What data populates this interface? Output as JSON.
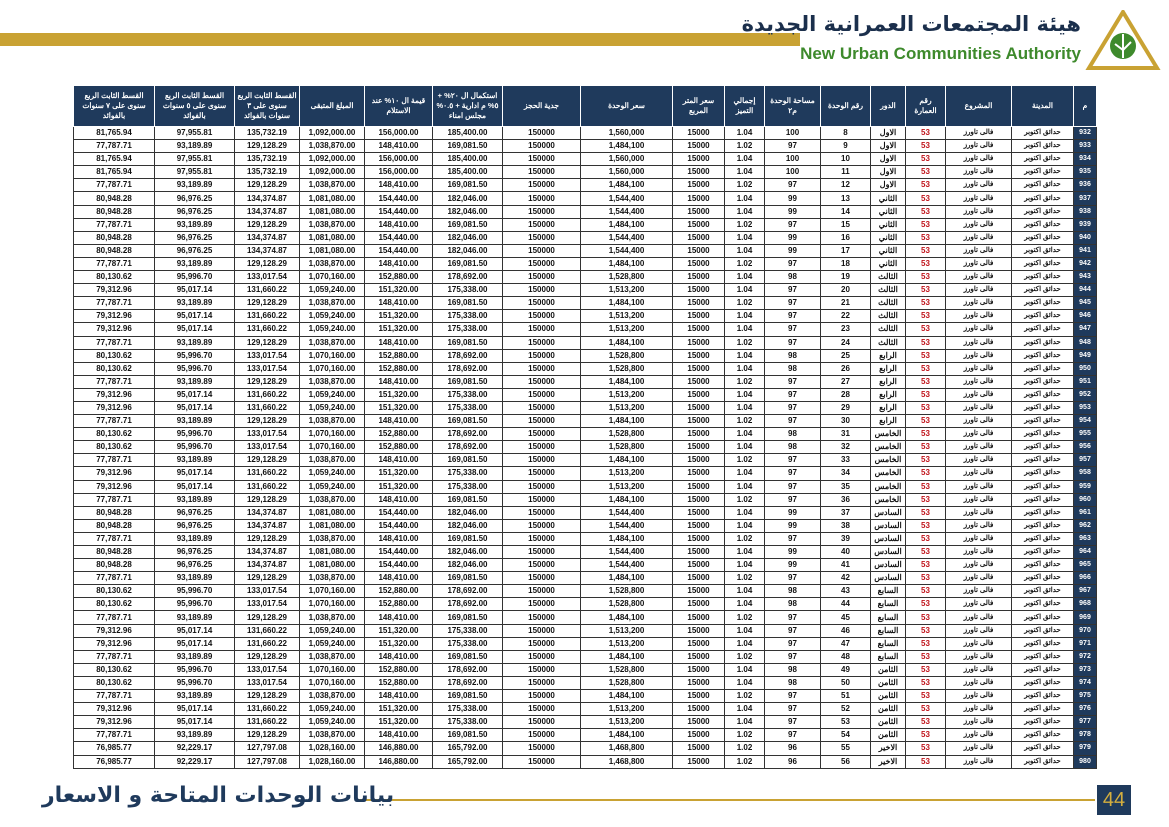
{
  "header": {
    "title_ar": "هيئة المجتمعات العمرانية الجديدة",
    "title_en": "New Urban Communities Authority"
  },
  "table": {
    "columns": [
      "م",
      "المدينة",
      "المشروع",
      "رقم العمارة",
      "الدور",
      "رقم الوحدة",
      "مساحة الوحدة م٢",
      "إجمالي التميز",
      "سعر المتر المربع",
      "سعر الوحدة",
      "جدية الحجز",
      "استكمال ال ٢٠% + ٥% م ادارية + ٠.٥% مجلس امناء",
      "قيمة ال ١٠% عند الاستلام",
      "المبلغ المتبقى",
      "القسط الثابت الربع سنوى على ٣ سنوات بالفوائد",
      "القسط الثابت الربع سنوى على ٥ سنوات بالفوائد",
      "القسط الثابت الربع سنوى على ٧ سنوات بالفوائد"
    ],
    "rows": [
      [
        "932",
        "حدائق اكتوبر",
        "فالى تاورز",
        "53",
        "الاول",
        "8",
        "100",
        "1.04",
        "15000",
        "1,560,000",
        "150000",
        "185,400.00",
        "156,000.00",
        "1,092,000.00",
        "135,732.19",
        "97,955.81",
        "81,765.94"
      ],
      [
        "933",
        "حدائق اكتوبر",
        "فالى تاورز",
        "53",
        "الاول",
        "9",
        "97",
        "1.02",
        "15000",
        "1,484,100",
        "150000",
        "169,081.50",
        "148,410.00",
        "1,038,870.00",
        "129,128.29",
        "93,189.89",
        "77,787.71"
      ],
      [
        "934",
        "حدائق اكتوبر",
        "فالى تاورز",
        "53",
        "الاول",
        "10",
        "100",
        "1.04",
        "15000",
        "1,560,000",
        "150000",
        "185,400.00",
        "156,000.00",
        "1,092,000.00",
        "135,732.19",
        "97,955.81",
        "81,765.94"
      ],
      [
        "935",
        "حدائق اكتوبر",
        "فالى تاورز",
        "53",
        "الاول",
        "11",
        "100",
        "1.04",
        "15000",
        "1,560,000",
        "150000",
        "185,400.00",
        "156,000.00",
        "1,092,000.00",
        "135,732.19",
        "97,955.81",
        "81,765.94"
      ],
      [
        "936",
        "حدائق اكتوبر",
        "فالى تاورز",
        "53",
        "الاول",
        "12",
        "97",
        "1.02",
        "15000",
        "1,484,100",
        "150000",
        "169,081.50",
        "148,410.00",
        "1,038,870.00",
        "129,128.29",
        "93,189.89",
        "77,787.71"
      ],
      [
        "937",
        "حدائق اكتوبر",
        "فالى تاورز",
        "53",
        "الثاني",
        "13",
        "99",
        "1.04",
        "15000",
        "1,544,400",
        "150000",
        "182,046.00",
        "154,440.00",
        "1,081,080.00",
        "134,374.87",
        "96,976.25",
        "80,948.28"
      ],
      [
        "938",
        "حدائق اكتوبر",
        "فالى تاورز",
        "53",
        "الثاني",
        "14",
        "99",
        "1.04",
        "15000",
        "1,544,400",
        "150000",
        "182,046.00",
        "154,440.00",
        "1,081,080.00",
        "134,374.87",
        "96,976.25",
        "80,948.28"
      ],
      [
        "939",
        "حدائق اكتوبر",
        "فالى تاورز",
        "53",
        "الثاني",
        "15",
        "97",
        "1.02",
        "15000",
        "1,484,100",
        "150000",
        "169,081.50",
        "148,410.00",
        "1,038,870.00",
        "129,128.29",
        "93,189.89",
        "77,787.71"
      ],
      [
        "940",
        "حدائق اكتوبر",
        "فالى تاورز",
        "53",
        "الثاني",
        "16",
        "99",
        "1.04",
        "15000",
        "1,544,400",
        "150000",
        "182,046.00",
        "154,440.00",
        "1,081,080.00",
        "134,374.87",
        "96,976.25",
        "80,948.28"
      ],
      [
        "941",
        "حدائق اكتوبر",
        "فالى تاورز",
        "53",
        "الثاني",
        "17",
        "99",
        "1.04",
        "15000",
        "1,544,400",
        "150000",
        "182,046.00",
        "154,440.00",
        "1,081,080.00",
        "134,374.87",
        "96,976.25",
        "80,948.28"
      ],
      [
        "942",
        "حدائق اكتوبر",
        "فالى تاورز",
        "53",
        "الثاني",
        "18",
        "97",
        "1.02",
        "15000",
        "1,484,100",
        "150000",
        "169,081.50",
        "148,410.00",
        "1,038,870.00",
        "129,128.29",
        "93,189.89",
        "77,787.71"
      ],
      [
        "943",
        "حدائق اكتوبر",
        "فالى تاورز",
        "53",
        "الثالث",
        "19",
        "98",
        "1.04",
        "15000",
        "1,528,800",
        "150000",
        "178,692.00",
        "152,880.00",
        "1,070,160.00",
        "133,017.54",
        "95,996.70",
        "80,130.62"
      ],
      [
        "944",
        "حدائق اكتوبر",
        "فالى تاورز",
        "53",
        "الثالث",
        "20",
        "97",
        "1.04",
        "15000",
        "1,513,200",
        "150000",
        "175,338.00",
        "151,320.00",
        "1,059,240.00",
        "131,660.22",
        "95,017.14",
        "79,312.96"
      ],
      [
        "945",
        "حدائق اكتوبر",
        "فالى تاورز",
        "53",
        "الثالث",
        "21",
        "97",
        "1.02",
        "15000",
        "1,484,100",
        "150000",
        "169,081.50",
        "148,410.00",
        "1,038,870.00",
        "129,128.29",
        "93,189.89",
        "77,787.71"
      ],
      [
        "946",
        "حدائق اكتوبر",
        "فالى تاورز",
        "53",
        "الثالث",
        "22",
        "97",
        "1.04",
        "15000",
        "1,513,200",
        "150000",
        "175,338.00",
        "151,320.00",
        "1,059,240.00",
        "131,660.22",
        "95,017.14",
        "79,312.96"
      ],
      [
        "947",
        "حدائق اكتوبر",
        "فالى تاورز",
        "53",
        "الثالث",
        "23",
        "97",
        "1.04",
        "15000",
        "1,513,200",
        "150000",
        "175,338.00",
        "151,320.00",
        "1,059,240.00",
        "131,660.22",
        "95,017.14",
        "79,312.96"
      ],
      [
        "948",
        "حدائق اكتوبر",
        "فالى تاورز",
        "53",
        "الثالث",
        "24",
        "97",
        "1.02",
        "15000",
        "1,484,100",
        "150000",
        "169,081.50",
        "148,410.00",
        "1,038,870.00",
        "129,128.29",
        "93,189.89",
        "77,787.71"
      ],
      [
        "949",
        "حدائق اكتوبر",
        "فالى تاورز",
        "53",
        "الرابع",
        "25",
        "98",
        "1.04",
        "15000",
        "1,528,800",
        "150000",
        "178,692.00",
        "152,880.00",
        "1,070,160.00",
        "133,017.54",
        "95,996.70",
        "80,130.62"
      ],
      [
        "950",
        "حدائق اكتوبر",
        "فالى تاورز",
        "53",
        "الرابع",
        "26",
        "98",
        "1.04",
        "15000",
        "1,528,800",
        "150000",
        "178,692.00",
        "152,880.00",
        "1,070,160.00",
        "133,017.54",
        "95,996.70",
        "80,130.62"
      ],
      [
        "951",
        "حدائق اكتوبر",
        "فالى تاورز",
        "53",
        "الرابع",
        "27",
        "97",
        "1.02",
        "15000",
        "1,484,100",
        "150000",
        "169,081.50",
        "148,410.00",
        "1,038,870.00",
        "129,128.29",
        "93,189.89",
        "77,787.71"
      ],
      [
        "952",
        "حدائق اكتوبر",
        "فالى تاورز",
        "53",
        "الرابع",
        "28",
        "97",
        "1.04",
        "15000",
        "1,513,200",
        "150000",
        "175,338.00",
        "151,320.00",
        "1,059,240.00",
        "131,660.22",
        "95,017.14",
        "79,312.96"
      ],
      [
        "953",
        "حدائق اكتوبر",
        "فالى تاورز",
        "53",
        "الرابع",
        "29",
        "97",
        "1.04",
        "15000",
        "1,513,200",
        "150000",
        "175,338.00",
        "151,320.00",
        "1,059,240.00",
        "131,660.22",
        "95,017.14",
        "79,312.96"
      ],
      [
        "954",
        "حدائق اكتوبر",
        "فالى تاورز",
        "53",
        "الرابع",
        "30",
        "97",
        "1.02",
        "15000",
        "1,484,100",
        "150000",
        "169,081.50",
        "148,410.00",
        "1,038,870.00",
        "129,128.29",
        "93,189.89",
        "77,787.71"
      ],
      [
        "955",
        "حدائق اكتوبر",
        "فالى تاورز",
        "53",
        "الخامس",
        "31",
        "98",
        "1.04",
        "15000",
        "1,528,800",
        "150000",
        "178,692.00",
        "152,880.00",
        "1,070,160.00",
        "133,017.54",
        "95,996.70",
        "80,130.62"
      ],
      [
        "956",
        "حدائق اكتوبر",
        "فالى تاورز",
        "53",
        "الخامس",
        "32",
        "98",
        "1.04",
        "15000",
        "1,528,800",
        "150000",
        "178,692.00",
        "152,880.00",
        "1,070,160.00",
        "133,017.54",
        "95,996.70",
        "80,130.62"
      ],
      [
        "957",
        "حدائق اكتوبر",
        "فالى تاورز",
        "53",
        "الخامس",
        "33",
        "97",
        "1.02",
        "15000",
        "1,484,100",
        "150000",
        "169,081.50",
        "148,410.00",
        "1,038,870.00",
        "129,128.29",
        "93,189.89",
        "77,787.71"
      ],
      [
        "958",
        "حدائق اكتوبر",
        "فالى تاورز",
        "53",
        "الخامس",
        "34",
        "97",
        "1.04",
        "15000",
        "1,513,200",
        "150000",
        "175,338.00",
        "151,320.00",
        "1,059,240.00",
        "131,660.22",
        "95,017.14",
        "79,312.96"
      ],
      [
        "959",
        "حدائق اكتوبر",
        "فالى تاورز",
        "53",
        "الخامس",
        "35",
        "97",
        "1.04",
        "15000",
        "1,513,200",
        "150000",
        "175,338.00",
        "151,320.00",
        "1,059,240.00",
        "131,660.22",
        "95,017.14",
        "79,312.96"
      ],
      [
        "960",
        "حدائق اكتوبر",
        "فالى تاورز",
        "53",
        "الخامس",
        "36",
        "97",
        "1.02",
        "15000",
        "1,484,100",
        "150000",
        "169,081.50",
        "148,410.00",
        "1,038,870.00",
        "129,128.29",
        "93,189.89",
        "77,787.71"
      ],
      [
        "961",
        "حدائق اكتوبر",
        "فالى تاورز",
        "53",
        "السادس",
        "37",
        "99",
        "1.04",
        "15000",
        "1,544,400",
        "150000",
        "182,046.00",
        "154,440.00",
        "1,081,080.00",
        "134,374.87",
        "96,976.25",
        "80,948.28"
      ],
      [
        "962",
        "حدائق اكتوبر",
        "فالى تاورز",
        "53",
        "السادس",
        "38",
        "99",
        "1.04",
        "15000",
        "1,544,400",
        "150000",
        "182,046.00",
        "154,440.00",
        "1,081,080.00",
        "134,374.87",
        "96,976.25",
        "80,948.28"
      ],
      [
        "963",
        "حدائق اكتوبر",
        "فالى تاورز",
        "53",
        "السادس",
        "39",
        "97",
        "1.02",
        "15000",
        "1,484,100",
        "150000",
        "169,081.50",
        "148,410.00",
        "1,038,870.00",
        "129,128.29",
        "93,189.89",
        "77,787.71"
      ],
      [
        "964",
        "حدائق اكتوبر",
        "فالى تاورز",
        "53",
        "السادس",
        "40",
        "99",
        "1.04",
        "15000",
        "1,544,400",
        "150000",
        "182,046.00",
        "154,440.00",
        "1,081,080.00",
        "134,374.87",
        "96,976.25",
        "80,948.28"
      ],
      [
        "965",
        "حدائق اكتوبر",
        "فالى تاورز",
        "53",
        "السادس",
        "41",
        "99",
        "1.04",
        "15000",
        "1,544,400",
        "150000",
        "182,046.00",
        "154,440.00",
        "1,081,080.00",
        "134,374.87",
        "96,976.25",
        "80,948.28"
      ],
      [
        "966",
        "حدائق اكتوبر",
        "فالى تاورز",
        "53",
        "السادس",
        "42",
        "97",
        "1.02",
        "15000",
        "1,484,100",
        "150000",
        "169,081.50",
        "148,410.00",
        "1,038,870.00",
        "129,128.29",
        "93,189.89",
        "77,787.71"
      ],
      [
        "967",
        "حدائق اكتوبر",
        "فالى تاورز",
        "53",
        "السابع",
        "43",
        "98",
        "1.04",
        "15000",
        "1,528,800",
        "150000",
        "178,692.00",
        "152,880.00",
        "1,070,160.00",
        "133,017.54",
        "95,996.70",
        "80,130.62"
      ],
      [
        "968",
        "حدائق اكتوبر",
        "فالى تاورز",
        "53",
        "السابع",
        "44",
        "98",
        "1.04",
        "15000",
        "1,528,800",
        "150000",
        "178,692.00",
        "152,880.00",
        "1,070,160.00",
        "133,017.54",
        "95,996.70",
        "80,130.62"
      ],
      [
        "969",
        "حدائق اكتوبر",
        "فالى تاورز",
        "53",
        "السابع",
        "45",
        "97",
        "1.02",
        "15000",
        "1,484,100",
        "150000",
        "169,081.50",
        "148,410.00",
        "1,038,870.00",
        "129,128.29",
        "93,189.89",
        "77,787.71"
      ],
      [
        "970",
        "حدائق اكتوبر",
        "فالى تاورز",
        "53",
        "السابع",
        "46",
        "97",
        "1.04",
        "15000",
        "1,513,200",
        "150000",
        "175,338.00",
        "151,320.00",
        "1,059,240.00",
        "131,660.22",
        "95,017.14",
        "79,312.96"
      ],
      [
        "971",
        "حدائق اكتوبر",
        "فالى تاورز",
        "53",
        "السابع",
        "47",
        "97",
        "1.04",
        "15000",
        "1,513,200",
        "150000",
        "175,338.00",
        "151,320.00",
        "1,059,240.00",
        "131,660.22",
        "95,017.14",
        "79,312.96"
      ],
      [
        "972",
        "حدائق اكتوبر",
        "فالى تاورز",
        "53",
        "السابع",
        "48",
        "97",
        "1.02",
        "15000",
        "1,484,100",
        "150000",
        "169,081.50",
        "148,410.00",
        "1,038,870.00",
        "129,128.29",
        "93,189.89",
        "77,787.71"
      ],
      [
        "973",
        "حدائق اكتوبر",
        "فالى تاورز",
        "53",
        "الثامن",
        "49",
        "98",
        "1.04",
        "15000",
        "1,528,800",
        "150000",
        "178,692.00",
        "152,880.00",
        "1,070,160.00",
        "133,017.54",
        "95,996.70",
        "80,130.62"
      ],
      [
        "974",
        "حدائق اكتوبر",
        "فالى تاورز",
        "53",
        "الثامن",
        "50",
        "98",
        "1.04",
        "15000",
        "1,528,800",
        "150000",
        "178,692.00",
        "152,880.00",
        "1,070,160.00",
        "133,017.54",
        "95,996.70",
        "80,130.62"
      ],
      [
        "975",
        "حدائق اكتوبر",
        "فالى تاورز",
        "53",
        "الثامن",
        "51",
        "97",
        "1.02",
        "15000",
        "1,484,100",
        "150000",
        "169,081.50",
        "148,410.00",
        "1,038,870.00",
        "129,128.29",
        "93,189.89",
        "77,787.71"
      ],
      [
        "976",
        "حدائق اكتوبر",
        "فالى تاورز",
        "53",
        "الثامن",
        "52",
        "97",
        "1.04",
        "15000",
        "1,513,200",
        "150000",
        "175,338.00",
        "151,320.00",
        "1,059,240.00",
        "131,660.22",
        "95,017.14",
        "79,312.96"
      ],
      [
        "977",
        "حدائق اكتوبر",
        "فالى تاورز",
        "53",
        "الثامن",
        "53",
        "97",
        "1.04",
        "15000",
        "1,513,200",
        "150000",
        "175,338.00",
        "151,320.00",
        "1,059,240.00",
        "131,660.22",
        "95,017.14",
        "79,312.96"
      ],
      [
        "978",
        "حدائق اكتوبر",
        "فالى تاورز",
        "53",
        "الثامن",
        "54",
        "97",
        "1.02",
        "15000",
        "1,484,100",
        "150000",
        "169,081.50",
        "148,410.00",
        "1,038,870.00",
        "129,128.29",
        "93,189.89",
        "77,787.71"
      ],
      [
        "979",
        "حدائق اكتوبر",
        "فالى تاورز",
        "53",
        "الاخير",
        "55",
        "96",
        "1.02",
        "15000",
        "1,468,800",
        "150000",
        "165,792.00",
        "146,880.00",
        "1,028,160.00",
        "127,797.08",
        "92,229.17",
        "76,985.77"
      ],
      [
        "980",
        "حدائق اكتوبر",
        "فالى تاورز",
        "53",
        "الاخير",
        "56",
        "96",
        "1.02",
        "15000",
        "1,468,800",
        "150000",
        "165,792.00",
        "146,880.00",
        "1,028,160.00",
        "127,797.08",
        "92,229.17",
        "76,985.77"
      ]
    ]
  },
  "footer": {
    "title": "بيانات الوحدات المتاحة و الاسعار",
    "page": "44"
  }
}
